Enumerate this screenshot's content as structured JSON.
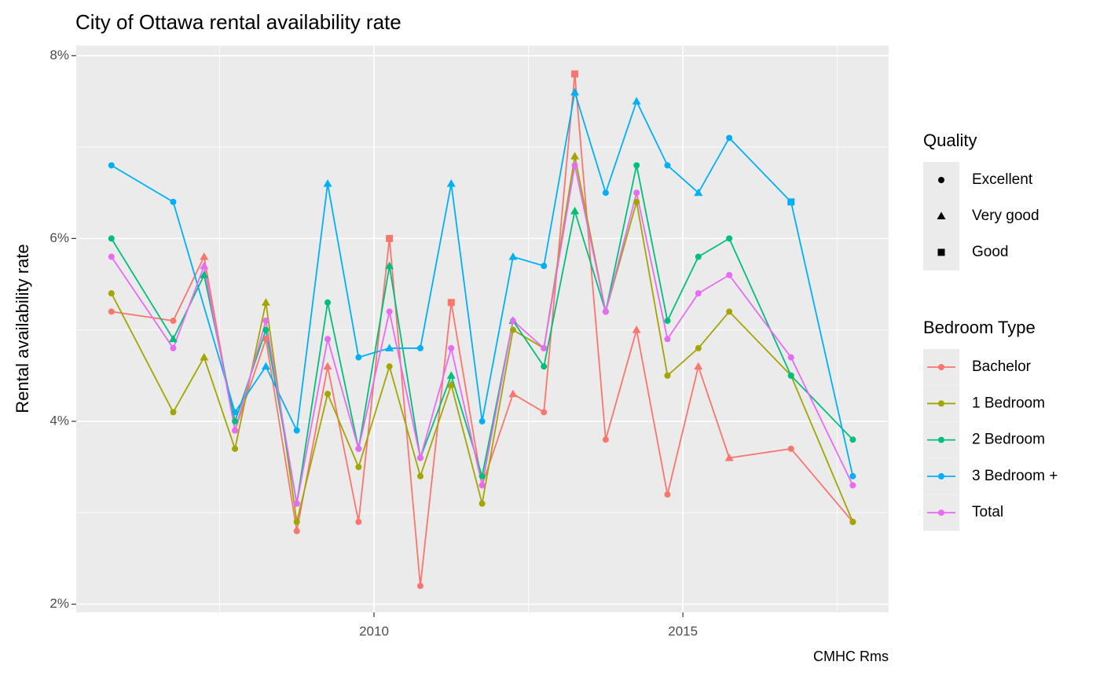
{
  "chart_data": {
    "type": "line",
    "title": "City of Ottawa rental availability rate",
    "y_label": "Rental availability rate",
    "caption": "CMHC Rms",
    "x": [
      2005.75,
      2006.75,
      2007.25,
      2007.75,
      2008.25,
      2008.75,
      2009.25,
      2009.75,
      2010.25,
      2010.75,
      2011.25,
      2011.75,
      2012.25,
      2012.75,
      2013.25,
      2013.75,
      2014.25,
      2014.75,
      2015.25,
      2015.75,
      2016.75,
      2017.75
    ],
    "xlim": [
      2005.18,
      2018.33
    ],
    "xticks": [
      2010,
      2015
    ],
    "xminor": [
      2007.5,
      2012.5,
      2017.5
    ],
    "ylim": [
      1.91,
      8.11
    ],
    "yticks": [
      {
        "value": 2,
        "label": "2%"
      },
      {
        "value": 4,
        "label": "4%"
      },
      {
        "value": 6,
        "label": "6%"
      },
      {
        "value": 8,
        "label": "8%"
      }
    ],
    "yminor": [
      3,
      5,
      7
    ],
    "grid": true,
    "color_legend_title": "Bedroom Type",
    "shape_legend": {
      "title": "Quality",
      "items": [
        "Excellent",
        "Very good",
        "Good"
      ],
      "shapes": [
        "circle",
        "triangle",
        "square"
      ]
    },
    "series": [
      {
        "name": "Bachelor",
        "color": "#F8766D",
        "values": [
          5.2,
          5.1,
          5.8,
          3.9,
          4.9,
          2.8,
          4.6,
          2.9,
          6.0,
          2.2,
          5.3,
          3.3,
          4.3,
          4.1,
          7.8,
          3.8,
          5.0,
          3.2,
          4.6,
          3.6,
          3.7,
          2.9
        ],
        "quality": [
          "Excellent",
          "Excellent",
          "Very good",
          "Excellent",
          "Excellent",
          "Excellent",
          "Very good",
          "Excellent",
          "Good",
          "Excellent",
          "Good",
          "Excellent",
          "Very good",
          "Excellent",
          "Good",
          "Excellent",
          "Very good",
          "Excellent",
          "Very good",
          "Very good",
          "Excellent",
          "Excellent"
        ]
      },
      {
        "name": "1 Bedroom",
        "color": "#A3A500",
        "values": [
          5.4,
          4.1,
          4.7,
          3.7,
          5.3,
          2.9,
          4.3,
          3.5,
          4.6,
          3.4,
          4.4,
          3.1,
          5.0,
          4.8,
          6.9,
          5.2,
          6.4,
          4.5,
          4.8,
          5.2,
          4.5,
          2.9
        ],
        "quality": [
          "Excellent",
          "Excellent",
          "Very good",
          "Excellent",
          "Very good",
          "Excellent",
          "Excellent",
          "Excellent",
          "Excellent",
          "Excellent",
          "Very good",
          "Excellent",
          "Excellent",
          "Excellent",
          "Very good",
          "Excellent",
          "Excellent",
          "Excellent",
          "Excellent",
          "Excellent",
          "Excellent",
          "Excellent"
        ]
      },
      {
        "name": "2 Bedroom",
        "color": "#00BF7D",
        "values": [
          6.0,
          4.9,
          5.6,
          4.0,
          5.0,
          3.1,
          5.3,
          3.7,
          5.7,
          3.6,
          4.5,
          3.4,
          5.1,
          4.6,
          6.3,
          5.2,
          6.8,
          5.1,
          5.8,
          6.0,
          4.5,
          3.8
        ],
        "quality": [
          "Excellent",
          "Very good",
          "Very good",
          "Excellent",
          "Excellent",
          "Excellent",
          "Excellent",
          "Excellent",
          "Very good",
          "Excellent",
          "Very good",
          "Excellent",
          "Very good",
          "Excellent",
          "Very good",
          "Excellent",
          "Excellent",
          "Excellent",
          "Excellent",
          "Excellent",
          "Excellent",
          "Excellent"
        ]
      },
      {
        "name": "3 Bedroom +",
        "color": "#00B0F6",
        "x": [
          2005.75,
          2006.75,
          2007.75,
          2008.25,
          2008.75,
          2009.25,
          2009.75,
          2010.25,
          2010.75,
          2011.25,
          2011.75,
          2012.25,
          2012.75,
          2013.25,
          2013.75,
          2014.25,
          2014.75,
          2015.25,
          2015.75,
          2016.75,
          2017.75
        ],
        "values": [
          6.8,
          6.4,
          4.1,
          4.6,
          3.9,
          6.6,
          4.7,
          4.8,
          4.8,
          6.6,
          4.0,
          5.8,
          5.7,
          7.6,
          6.5,
          7.5,
          6.8,
          6.5,
          7.1,
          6.4,
          3.4
        ],
        "quality": [
          "Excellent",
          "Excellent",
          "Excellent",
          "Very good",
          "Excellent",
          "Very good",
          "Excellent",
          "Very good",
          "Excellent",
          "Very good",
          "Excellent",
          "Very good",
          "Excellent",
          "Very good",
          "Excellent",
          "Very good",
          "Excellent",
          "Very good",
          "Excellent",
          "Good",
          "Excellent"
        ]
      },
      {
        "name": "Total",
        "color": "#E76BF3",
        "values": [
          5.8,
          4.8,
          5.7,
          3.9,
          5.1,
          3.1,
          4.9,
          3.7,
          5.2,
          3.6,
          4.8,
          3.3,
          5.1,
          4.8,
          6.8,
          5.2,
          6.5,
          4.9,
          5.4,
          5.6,
          4.7,
          3.3
        ],
        "quality": [
          "Excellent",
          "Excellent",
          "Very good",
          "Excellent",
          "Excellent",
          "Excellent",
          "Excellent",
          "Excellent",
          "Excellent",
          "Excellent",
          "Excellent",
          "Excellent",
          "Excellent",
          "Excellent",
          "Excellent",
          "Excellent",
          "Excellent",
          "Excellent",
          "Excellent",
          "Excellent",
          "Excellent",
          "Excellent"
        ]
      }
    ]
  }
}
